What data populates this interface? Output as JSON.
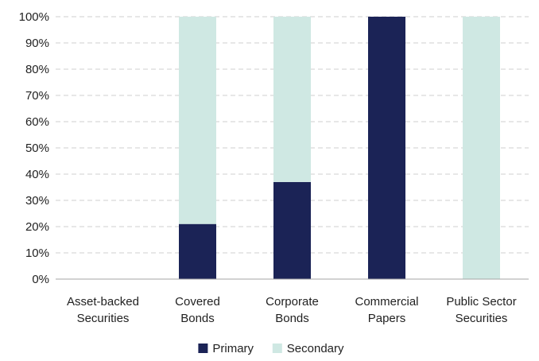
{
  "chart_data": {
    "type": "bar",
    "stacked": true,
    "categories": [
      [
        "Asset-backed",
        "Securities"
      ],
      [
        "Covered",
        "Bonds"
      ],
      [
        "Corporate",
        "Bonds"
      ],
      [
        "Commercial",
        "Papers"
      ],
      [
        "Public Sector",
        "Securities"
      ]
    ],
    "series": [
      {
        "name": "Primary",
        "values": [
          0,
          21,
          37,
          100,
          0
        ],
        "color": "#1b2356"
      },
      {
        "name": "Secondary",
        "values": [
          0,
          79,
          63,
          0,
          100
        ],
        "color": "#cfe8e3"
      }
    ],
    "ylim": [
      0,
      100
    ],
    "yticks": [
      "0%",
      "10%",
      "20%",
      "30%",
      "40%",
      "50%",
      "60%",
      "70%",
      "80%",
      "90%",
      "100%"
    ],
    "grid": true,
    "legend_position": "bottom"
  }
}
